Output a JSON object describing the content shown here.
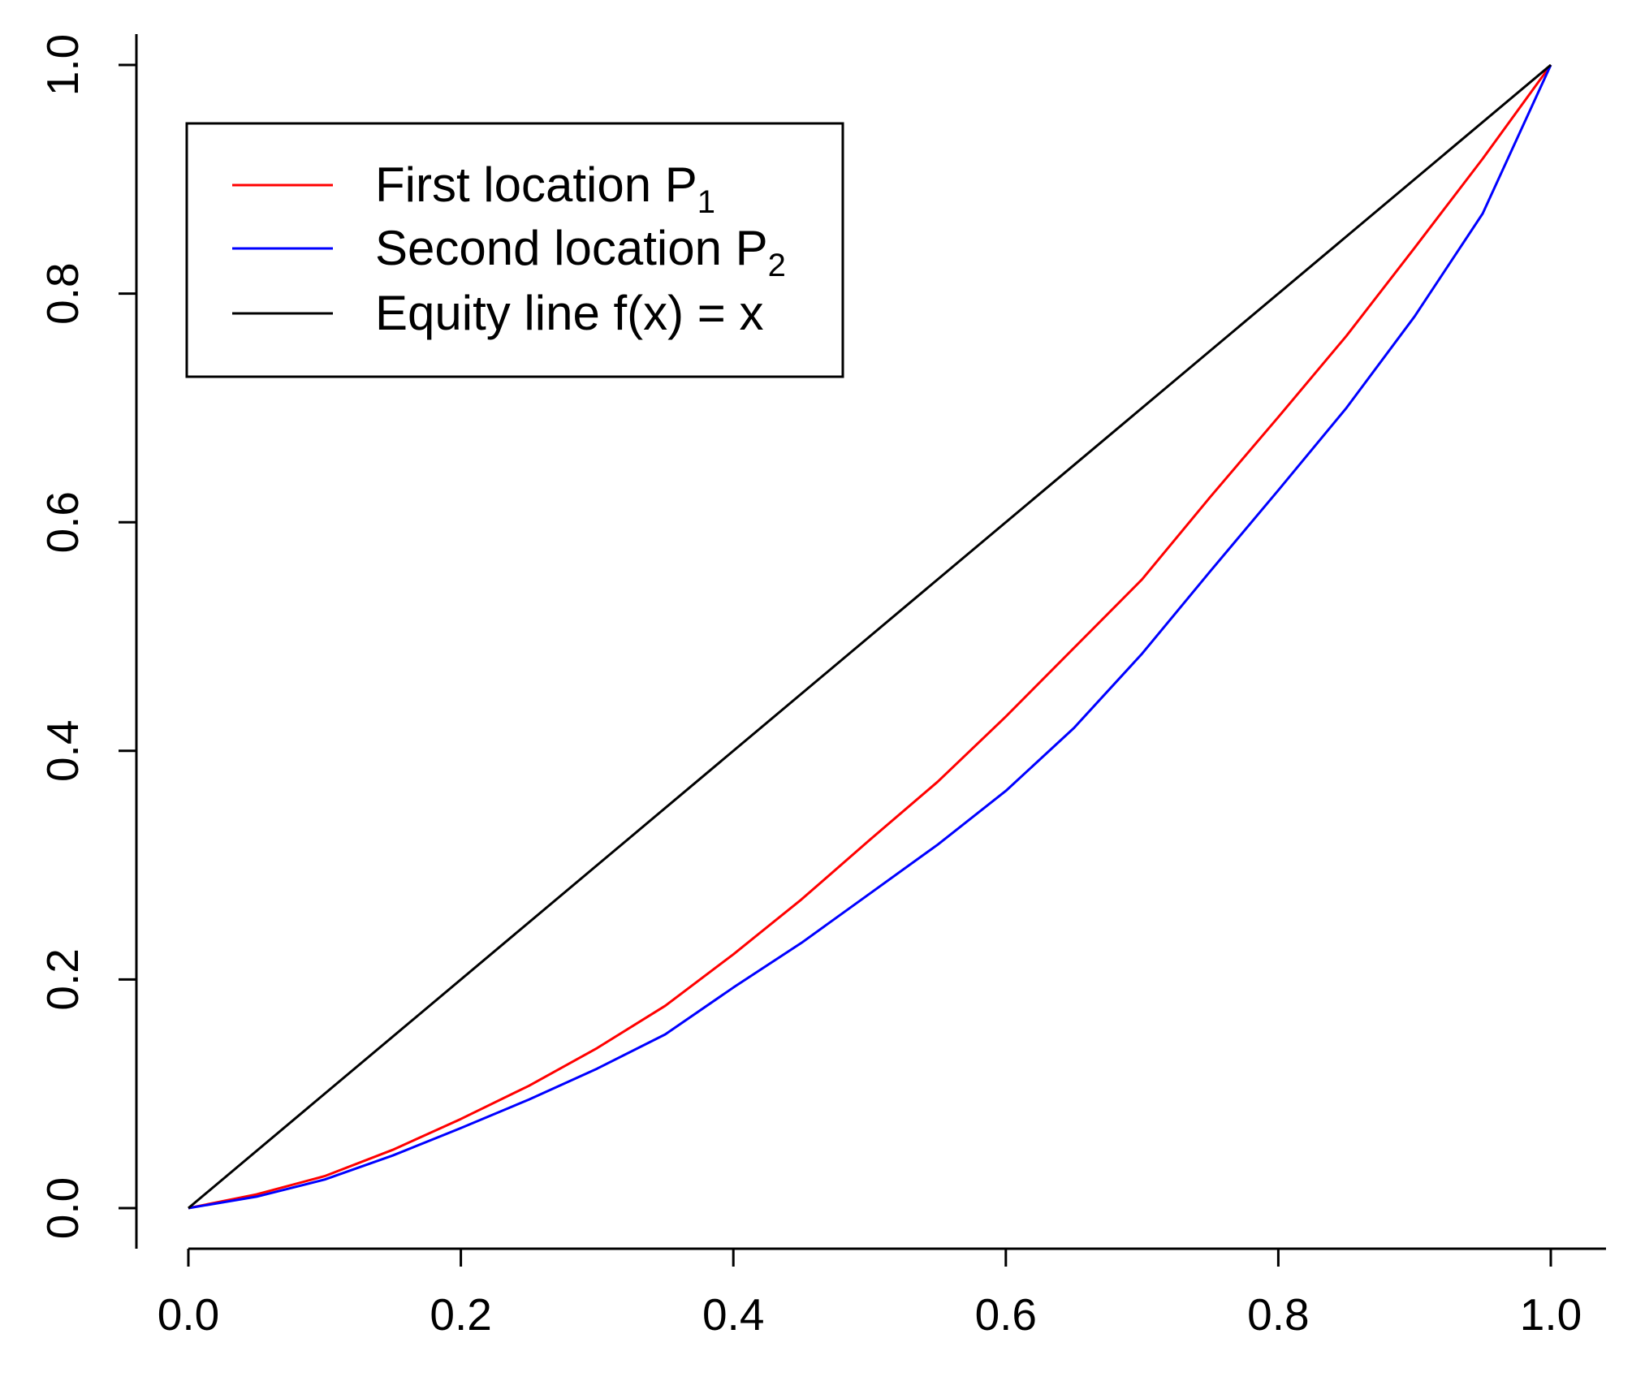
{
  "chart_data": {
    "type": "line",
    "title": "",
    "xlabel": "",
    "ylabel": "",
    "xlim": [
      0,
      1
    ],
    "ylim": [
      0,
      1
    ],
    "grid": false,
    "legend_position": "top-left",
    "x_ticks": [
      "0.0",
      "0.2",
      "0.4",
      "0.6",
      "0.8",
      "1.0"
    ],
    "y_ticks": [
      "0.0",
      "0.2",
      "0.4",
      "0.6",
      "0.8",
      "1.0"
    ],
    "legend": [
      {
        "text": "First location P",
        "sub": "1",
        "color": "#ff0000"
      },
      {
        "text": "Second location P",
        "sub": "2",
        "color": "#0000ff"
      },
      {
        "text": "Equity line f(x) = x",
        "sub": "",
        "color": "#000000"
      }
    ],
    "series": [
      {
        "name": "First location P1",
        "color": "#ff0000",
        "points": [
          [
            0,
            0
          ],
          [
            0.05,
            0.012
          ],
          [
            0.1,
            0.028
          ],
          [
            0.15,
            0.051
          ],
          [
            0.2,
            0.078
          ],
          [
            0.25,
            0.107
          ],
          [
            0.3,
            0.14
          ],
          [
            0.35,
            0.177
          ],
          [
            0.4,
            0.222
          ],
          [
            0.45,
            0.27
          ],
          [
            0.5,
            0.322
          ],
          [
            0.55,
            0.373
          ],
          [
            0.6,
            0.43
          ],
          [
            0.65,
            0.49
          ],
          [
            0.7,
            0.55
          ],
          [
            0.75,
            0.622
          ],
          [
            0.8,
            0.692
          ],
          [
            0.85,
            0.763
          ],
          [
            0.9,
            0.84
          ],
          [
            0.95,
            0.918
          ],
          [
            1,
            1
          ]
        ]
      },
      {
        "name": "Second location P2",
        "color": "#0000ff",
        "points": [
          [
            0,
            0
          ],
          [
            0.05,
            0.01
          ],
          [
            0.1,
            0.025
          ],
          [
            0.15,
            0.046
          ],
          [
            0.2,
            0.07
          ],
          [
            0.25,
            0.095
          ],
          [
            0.3,
            0.122
          ],
          [
            0.35,
            0.152
          ],
          [
            0.4,
            0.193
          ],
          [
            0.45,
            0.232
          ],
          [
            0.5,
            0.275
          ],
          [
            0.55,
            0.318
          ],
          [
            0.6,
            0.365
          ],
          [
            0.65,
            0.42
          ],
          [
            0.7,
            0.485
          ],
          [
            0.75,
            0.557
          ],
          [
            0.8,
            0.628
          ],
          [
            0.85,
            0.7
          ],
          [
            0.9,
            0.78
          ],
          [
            0.95,
            0.87
          ],
          [
            1,
            1
          ]
        ]
      },
      {
        "name": "Equity line f(x) = x",
        "color": "#000000",
        "points": [
          [
            0,
            0
          ],
          [
            1,
            1
          ]
        ]
      }
    ]
  }
}
